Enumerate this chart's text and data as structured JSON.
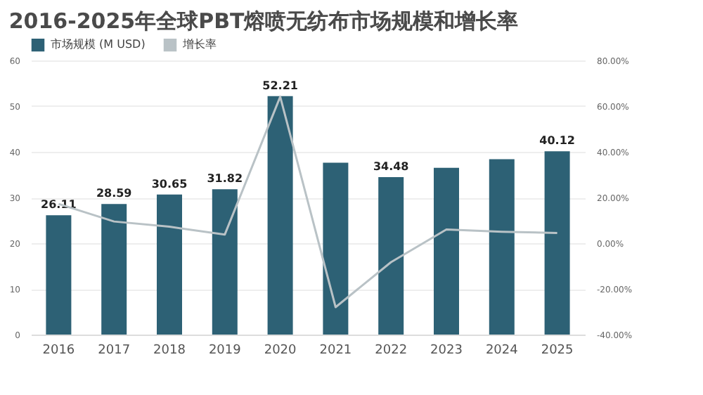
{
  "chart_data": {
    "type": "bar",
    "title": "2016-2025年全球PBT熔喷无纺布市场规模和增长率",
    "categories": [
      "2016",
      "2017",
      "2018",
      "2019",
      "2020",
      "2021",
      "2022",
      "2023",
      "2024",
      "2025"
    ],
    "series": [
      {
        "name": "市场规模 (M USD)",
        "color": "#2d6175",
        "values": [
          26.11,
          28.59,
          30.65,
          31.82,
          52.21,
          37.6,
          34.48,
          36.5,
          38.4,
          40.12
        ],
        "value_labels": [
          "26.11",
          "28.59",
          "30.65",
          "31.82",
          "52.21",
          null,
          "34.48",
          null,
          null,
          "40.12"
        ]
      },
      {
        "name": "增长率",
        "type": "line",
        "axis": "y2",
        "color": "#b9c2c6",
        "values": [
          17.2,
          9.5,
          7.2,
          3.8,
          64.1,
          -28,
          -8.3,
          6,
          5,
          4.5
        ]
      }
    ],
    "ylim": [
      0,
      60
    ],
    "yticks": [
      0,
      10,
      20,
      30,
      40,
      50,
      60
    ],
    "y2lim": [
      -40,
      80
    ],
    "y2ticks": [
      {
        "value": -40,
        "label": "-40.00%"
      },
      {
        "value": -20,
        "label": "-20.00%"
      },
      {
        "value": 0,
        "label": "0.00%"
      },
      {
        "value": 20,
        "label": "20.00%"
      },
      {
        "value": 40,
        "label": "40.00%"
      },
      {
        "value": 60,
        "label": "60.00%"
      },
      {
        "value": 80,
        "label": "80.00%"
      }
    ],
    "grid": "y",
    "legend": "top left"
  }
}
